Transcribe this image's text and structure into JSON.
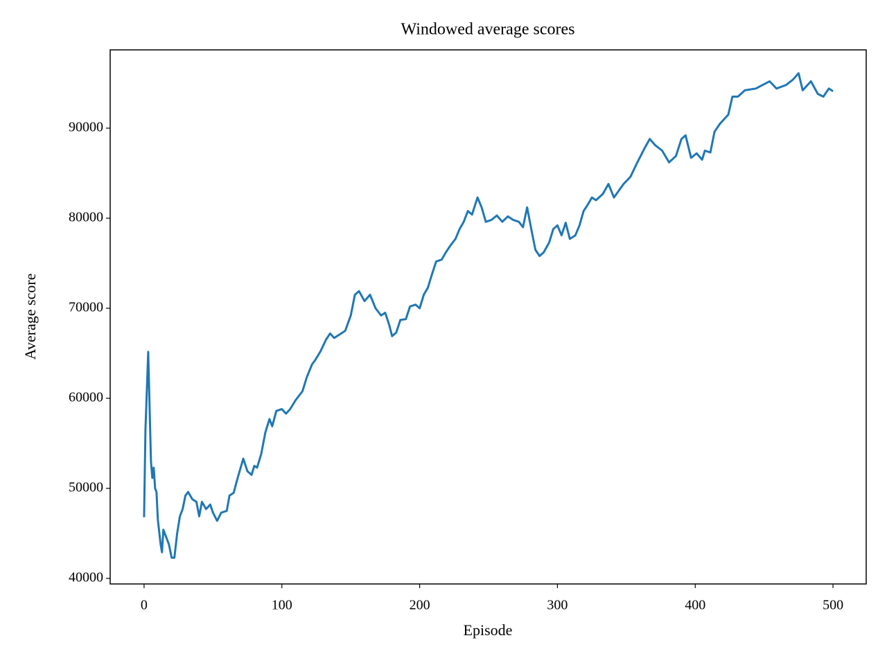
{
  "chart_data": {
    "type": "line",
    "title": "Windowed average scores",
    "x_label": "Episode",
    "y_label": "Average score",
    "color": "#1f77b4",
    "x": [
      0,
      1,
      3,
      5,
      6,
      7,
      8,
      9,
      10,
      12,
      13,
      14,
      16,
      18,
      20,
      22,
      24,
      26,
      28,
      30,
      32,
      35,
      38,
      40,
      42,
      45,
      48,
      50,
      53,
      56,
      60,
      62,
      65,
      68,
      72,
      75,
      78,
      80,
      82,
      85,
      88,
      91,
      93,
      96,
      100,
      103,
      106,
      110,
      115,
      118,
      122,
      124,
      128,
      132,
      135,
      138,
      142,
      146,
      150,
      153,
      156,
      160,
      164,
      168,
      172,
      175,
      178,
      180,
      183,
      186,
      190,
      193,
      197,
      200,
      203,
      206,
      209,
      212,
      216,
      219,
      222,
      226,
      229,
      232,
      235,
      238,
      242,
      245,
      248,
      252,
      256,
      260,
      264,
      268,
      272,
      275,
      278,
      281,
      284,
      287,
      290,
      294,
      297,
      300,
      303,
      306,
      309,
      313,
      316,
      319,
      322,
      325,
      328,
      333,
      337,
      341,
      348,
      353,
      358,
      363,
      367,
      371,
      376,
      381,
      386,
      390,
      393,
      397,
      401,
      405,
      407,
      411,
      414,
      418,
      424,
      427,
      431,
      436,
      444,
      449,
      454,
      459,
      466,
      471,
      475,
      478,
      484,
      489,
      493,
      497,
      500
    ],
    "values": [
      46800,
      56500,
      65150,
      53000,
      51150,
      52300,
      50000,
      49600,
      46500,
      43800,
      42900,
      45400,
      44600,
      43800,
      42300,
      42300,
      45000,
      46900,
      47700,
      49200,
      49600,
      48800,
      48500,
      46900,
      48500,
      47700,
      48200,
      47300,
      46400,
      47300,
      47500,
      49200,
      49500,
      51200,
      53300,
      51900,
      51500,
      52500,
      52300,
      53800,
      56200,
      57700,
      56900,
      58600,
      58800,
      58300,
      58800,
      59800,
      60800,
      62300,
      63800,
      64200,
      65200,
      66500,
      67200,
      66700,
      67100,
      67500,
      69200,
      71500,
      71900,
      70800,
      71500,
      70000,
      69200,
      69500,
      68100,
      66900,
      67300,
      68700,
      68800,
      70200,
      70400,
      70000,
      71500,
      72300,
      73800,
      75200,
      75400,
      76200,
      76900,
      77700,
      78800,
      79600,
      80800,
      80400,
      82300,
      81200,
      79600,
      79800,
      80300,
      79600,
      80200,
      79800,
      79600,
      79000,
      81200,
      78800,
      76500,
      75800,
      76200,
      77300,
      78800,
      79200,
      78100,
      79500,
      77700,
      78100,
      79200,
      80800,
      81500,
      82300,
      82000,
      82700,
      83800,
      82300,
      83800,
      84600,
      86200,
      87700,
      88800,
      88100,
      87500,
      86200,
      86900,
      88800,
      89200,
      86700,
      87200,
      86500,
      87500,
      87300,
      89600,
      90500,
      91500,
      93500,
      93500,
      94200,
      94400,
      94800,
      95200,
      94400,
      94800,
      95400,
      96100,
      94200,
      95200,
      93800,
      93500,
      94400,
      94100
    ],
    "xlim": [
      -24.6,
      524.1
    ],
    "ylim": [
      39385,
      98692
    ],
    "xticks": [
      0,
      100,
      200,
      300,
      400,
      500
    ],
    "yticks": [
      40000,
      50000,
      60000,
      70000,
      80000,
      90000
    ]
  }
}
